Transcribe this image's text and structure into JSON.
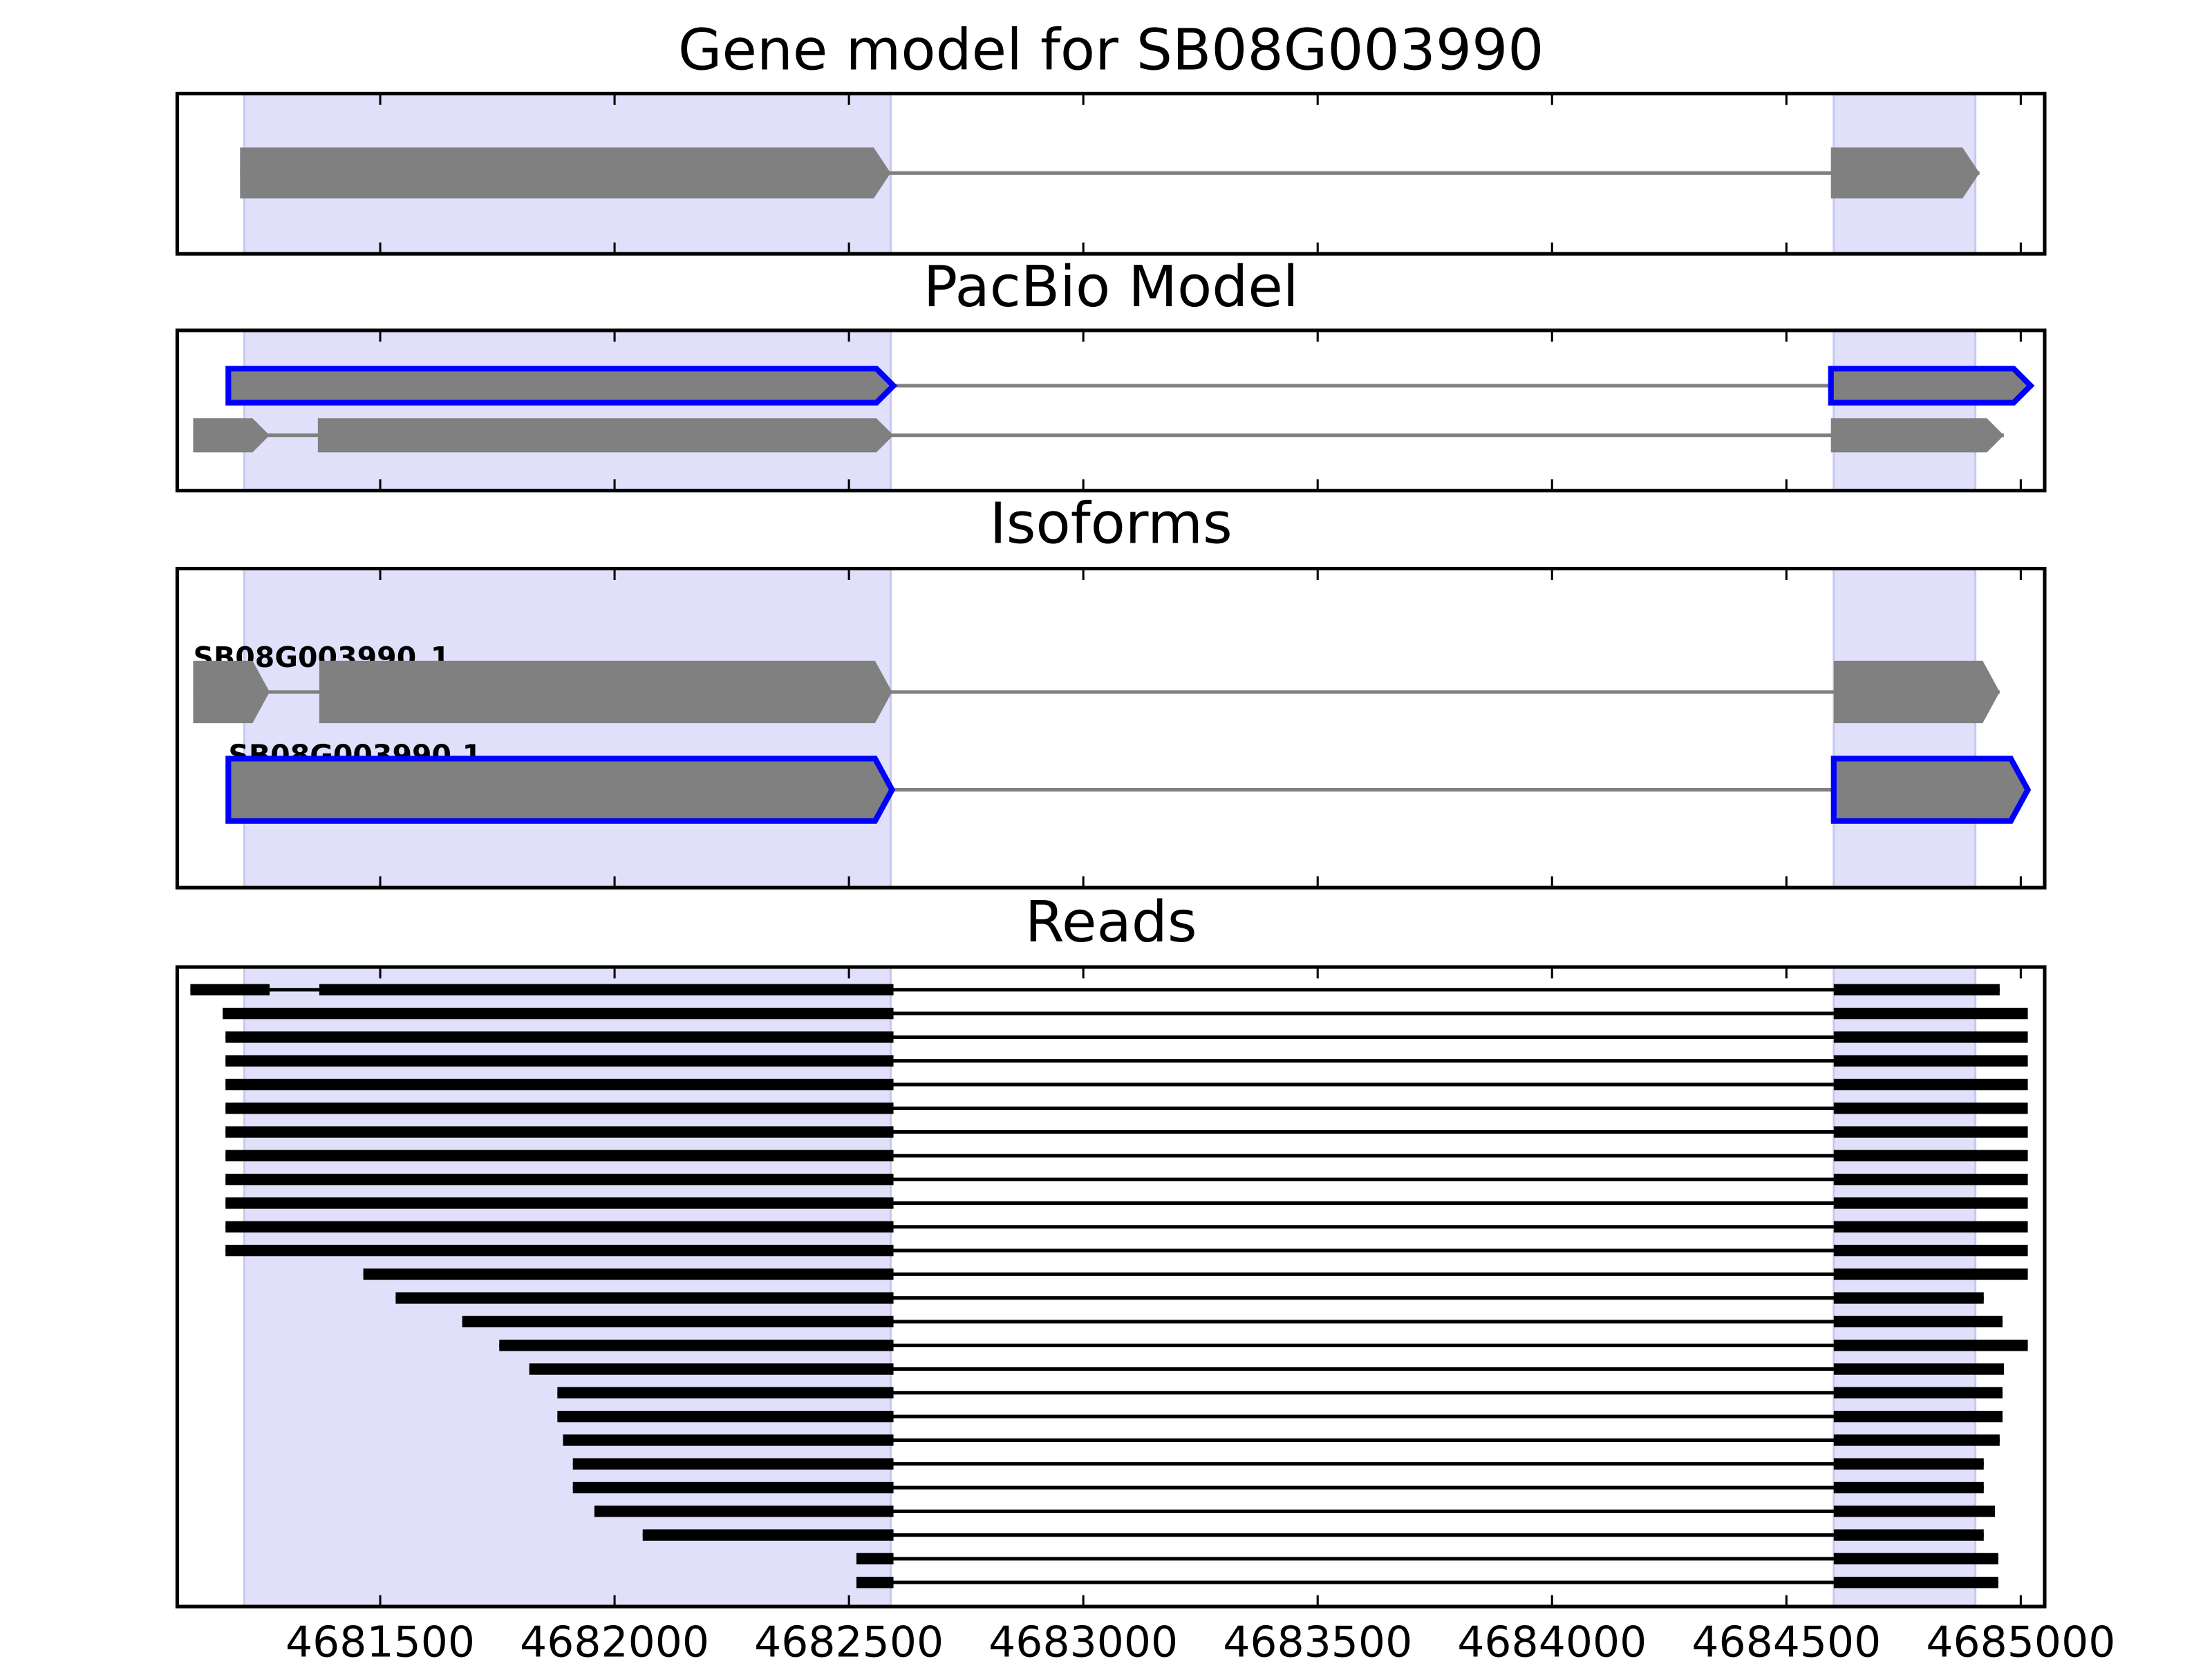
{
  "chart_data": [
    {
      "type": "gene_model",
      "title": "Gene model for SB08G003990",
      "xlim": [
        4681067,
        4685051
      ],
      "xticks": [
        4681500,
        4682000,
        4682500,
        4683000,
        4683500,
        4684000,
        4684500,
        4685000
      ],
      "highlight_regions": [
        [
          4681210,
          4682589
        ],
        [
          4684601,
          4684903
        ]
      ],
      "highlight_color": "#e0e0fb",
      "exon_color": "#808080",
      "outline_color": "#0000ff",
      "transcripts": [
        {
          "exons": [
            [
              4681201,
              4682589
            ],
            [
              4684595,
              4684912
            ]
          ],
          "highlight": false
        }
      ]
    },
    {
      "type": "gene_model",
      "title": "PacBio Model",
      "xlim": [
        4681067,
        4685051
      ],
      "xticks": [
        4681500,
        4682000,
        4682500,
        4683000,
        4683500,
        4684000,
        4684500,
        4685000
      ],
      "highlight_regions": [
        [
          4681210,
          4682589
        ],
        [
          4684601,
          4684903
        ]
      ],
      "highlight_color": "#e0e0fb",
      "exon_color": "#808080",
      "outline_color": "#0000ff",
      "transcripts": [
        {
          "exons": [
            [
              4681176,
              4682595
            ],
            [
              4684595,
              4685021
            ]
          ],
          "highlight": true
        },
        {
          "exons": [
            [
              4681101,
              4681264
            ],
            [
              4681367,
              4682595
            ],
            [
              4684595,
              4684964
            ]
          ],
          "highlight": false
        }
      ]
    },
    {
      "type": "gene_model",
      "title": "Isoforms",
      "xlim": [
        4681067,
        4685051
      ],
      "xticks": [
        4681500,
        4682000,
        4682500,
        4683000,
        4683500,
        4684000,
        4684500,
        4685000
      ],
      "highlight_regions": [
        [
          4681210,
          4682589
        ],
        [
          4684601,
          4684903
        ]
      ],
      "highlight_color": "#e0e0fb",
      "exon_color": "#808080",
      "outline_color": "#0000ff",
      "transcripts": [
        {
          "name": "SB08G003990_1",
          "exons": [
            [
              4681101,
              4681264
            ],
            [
              4681370,
              4682592
            ],
            [
              4684601,
              4684955
            ]
          ],
          "highlight": false
        },
        {
          "name": "SB08G003990.1",
          "exons": [
            [
              4681176,
              4682592
            ],
            [
              4684601,
              4685015
            ]
          ],
          "highlight": true
        }
      ]
    },
    {
      "type": "reads",
      "title": "Reads",
      "xlim": [
        4681067,
        4685051
      ],
      "xticks": [
        4681500,
        4682000,
        4682500,
        4683000,
        4683500,
        4684000,
        4684500,
        4685000
      ],
      "highlight_regions": [
        [
          4681210,
          4682589
        ],
        [
          4684601,
          4684903
        ]
      ],
      "highlight_color": "#e0e0fb",
      "read_color": "#000000",
      "reads": [
        [
          [
            4681095,
            4681264
          ],
          [
            4681370,
            4682595
          ],
          [
            4684601,
            4684955
          ]
        ],
        [
          [
            4681164,
            4682595
          ],
          [
            4684601,
            4685015
          ]
        ],
        [
          [
            4681170,
            4682595
          ],
          [
            4684601,
            4685015
          ]
        ],
        [
          [
            4681170,
            4682595
          ],
          [
            4684601,
            4685015
          ]
        ],
        [
          [
            4681170,
            4682595
          ],
          [
            4684601,
            4685015
          ]
        ],
        [
          [
            4681170,
            4682595
          ],
          [
            4684601,
            4685015
          ]
        ],
        [
          [
            4681170,
            4682595
          ],
          [
            4684601,
            4685015
          ]
        ],
        [
          [
            4681170,
            4682595
          ],
          [
            4684601,
            4685015
          ]
        ],
        [
          [
            4681170,
            4682595
          ],
          [
            4684601,
            4685015
          ]
        ],
        [
          [
            4681170,
            4682595
          ],
          [
            4684601,
            4685015
          ]
        ],
        [
          [
            4681170,
            4682595
          ],
          [
            4684601,
            4685015
          ]
        ],
        [
          [
            4681170,
            4682595
          ],
          [
            4684601,
            4685015
          ]
        ],
        [
          [
            4681464,
            4682595
          ],
          [
            4684601,
            4685015
          ]
        ],
        [
          [
            4681533,
            4682595
          ],
          [
            4684601,
            4684921
          ]
        ],
        [
          [
            4681675,
            4682595
          ],
          [
            4684601,
            4684961
          ]
        ],
        [
          [
            4681754,
            4682595
          ],
          [
            4684601,
            4685015
          ]
        ],
        [
          [
            4681818,
            4682595
          ],
          [
            4684601,
            4684964
          ]
        ],
        [
          [
            4681878,
            4682595
          ],
          [
            4684601,
            4684961
          ]
        ],
        [
          [
            4681878,
            4682595
          ],
          [
            4684601,
            4684961
          ]
        ],
        [
          [
            4681890,
            4682595
          ],
          [
            4684601,
            4684955
          ]
        ],
        [
          [
            4681911,
            4682595
          ],
          [
            4684601,
            4684921
          ]
        ],
        [
          [
            4681911,
            4682595
          ],
          [
            4684601,
            4684921
          ]
        ],
        [
          [
            4681957,
            4682595
          ],
          [
            4684601,
            4684945
          ]
        ],
        [
          [
            4682060,
            4682595
          ],
          [
            4684601,
            4684921
          ]
        ],
        [
          [
            4682516,
            4682595
          ],
          [
            4684601,
            4684952
          ]
        ],
        [
          [
            4682516,
            4682595
          ],
          [
            4684601,
            4684952
          ]
        ]
      ]
    }
  ]
}
